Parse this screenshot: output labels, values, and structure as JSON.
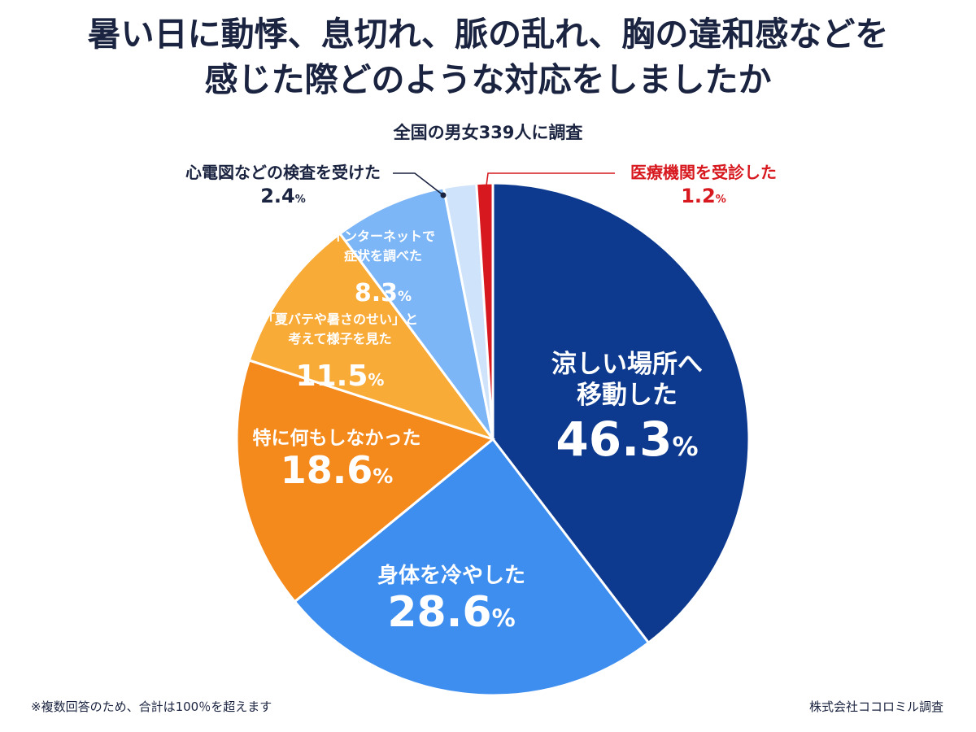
{
  "header": {
    "title_line1": "暑い日に動悸、息切れ、脈の乱れ、胸の違和感などを",
    "title_line2": "感じた際どのような対応をしましたか",
    "subtitle": "全国の男女339人に調査"
  },
  "chart_data": {
    "type": "pie",
    "start": "top",
    "direction": "clockwise",
    "slices": [
      {
        "label_lines": [
          "涼しい場所へ",
          "移動した"
        ],
        "value": 46.3,
        "value_text": "46.3",
        "color": "#0d3a8e",
        "label_color": "#ffffff",
        "label_placement": "inside"
      },
      {
        "label_lines": [
          "身体を冷やした"
        ],
        "value": 28.6,
        "value_text": "28.6",
        "color": "#3e8ef0",
        "label_color": "#ffffff",
        "label_placement": "inside"
      },
      {
        "label_lines": [
          "特に何もしなかった"
        ],
        "value": 18.6,
        "value_text": "18.6",
        "color": "#f4891c",
        "label_color": "#ffffff",
        "label_placement": "inside"
      },
      {
        "label_lines": [
          "「夏バテや暑さのせい」と",
          "考えて様子を見た"
        ],
        "value": 11.5,
        "value_text": "11.5",
        "color": "#f9ab38",
        "label_color": "#ffffff",
        "label_placement": "inside"
      },
      {
        "label_lines": [
          "インターネットで",
          "症状を調べた"
        ],
        "value": 8.3,
        "value_text": "8.3",
        "color": "#7db6f6",
        "label_color": "#ffffff",
        "label_placement": "inside"
      },
      {
        "label_lines": [
          "心電図などの検査を受けた"
        ],
        "value": 2.4,
        "value_text": "2.4",
        "color": "#cfe3fb",
        "label_color": "#1a2340",
        "label_placement": "outside-left"
      },
      {
        "label_lines": [
          "医療機関を受診した"
        ],
        "value": 1.2,
        "value_text": "1.2",
        "color": "#d7191f",
        "label_color": "#d7191f",
        "label_placement": "outside-right"
      }
    ],
    "unit": "%",
    "legend": "none"
  },
  "footer": {
    "note": "※複数回答のため、合計は100％を超えます",
    "credit": "株式会社ココロミル調査"
  }
}
